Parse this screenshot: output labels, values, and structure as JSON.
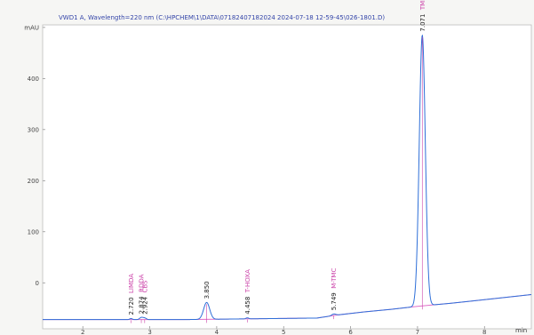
{
  "chart_data": {
    "type": "line",
    "header": "VWD1 A, Wavelength=220 nm (C:\\HPCHEM\\1\\DATA\\07182407182024 2024-07-18 12-59-45\\026-1801.D)",
    "y_unit": "mAU",
    "x_unit": "min",
    "xlim": [
      1.4,
      8.7
    ],
    "ylim": [
      -90,
      505
    ],
    "x_ticks": [
      2,
      3,
      4,
      5,
      6,
      7,
      8
    ],
    "y_ticks": [
      {
        "value": 0,
        "label": "0"
      },
      {
        "value": 100,
        "label": "100"
      },
      {
        "value": 200,
        "label": "200"
      },
      {
        "value": 300,
        "label": "300"
      },
      {
        "value": 400,
        "label": "400"
      },
      {
        "value": 500,
        "label": "mAU"
      }
    ],
    "baseline": [
      {
        "x": 1.4,
        "y": -72
      },
      {
        "x": 3.5,
        "y": -72
      },
      {
        "x": 5.5,
        "y": -69
      },
      {
        "x": 5.8,
        "y": -63
      },
      {
        "x": 6.2,
        "y": -57
      },
      {
        "x": 6.6,
        "y": -52
      },
      {
        "x": 7.0,
        "y": -46
      },
      {
        "x": 7.5,
        "y": -40
      },
      {
        "x": 8.0,
        "y": -33
      },
      {
        "x": 8.7,
        "y": -23
      }
    ],
    "peaks": [
      {
        "rt": 2.72,
        "height": 2,
        "width": 0.02,
        "rt_label": "2.720",
        "compound": "LIMDA"
      },
      {
        "rt": 2.874,
        "height": 4,
        "width": 0.025,
        "rt_label": "2.874",
        "compound": "RDDA"
      },
      {
        "rt": 2.924,
        "height": 3,
        "width": 0.025,
        "rt_label": "2.924",
        "compound": "CBS"
      },
      {
        "rt": 3.85,
        "height": 33,
        "width": 0.045,
        "rt_label": "3.850",
        "compound": ""
      },
      {
        "rt": 4.458,
        "height": 2,
        "width": 0.02,
        "rt_label": "4.458",
        "compound": "T-HOXA"
      },
      {
        "rt": 5.749,
        "height": 3,
        "width": 0.03,
        "rt_label": "5.749",
        "compound": "M-TMC"
      },
      {
        "rt": 7.071,
        "height": 530,
        "width": 0.045,
        "rt_label": "7.071",
        "compound": "TMLA"
      }
    ],
    "series": [
      {
        "name": "baseline",
        "color": "#e06fc8"
      },
      {
        "name": "signal",
        "color": "#2e6fd8"
      }
    ]
  }
}
